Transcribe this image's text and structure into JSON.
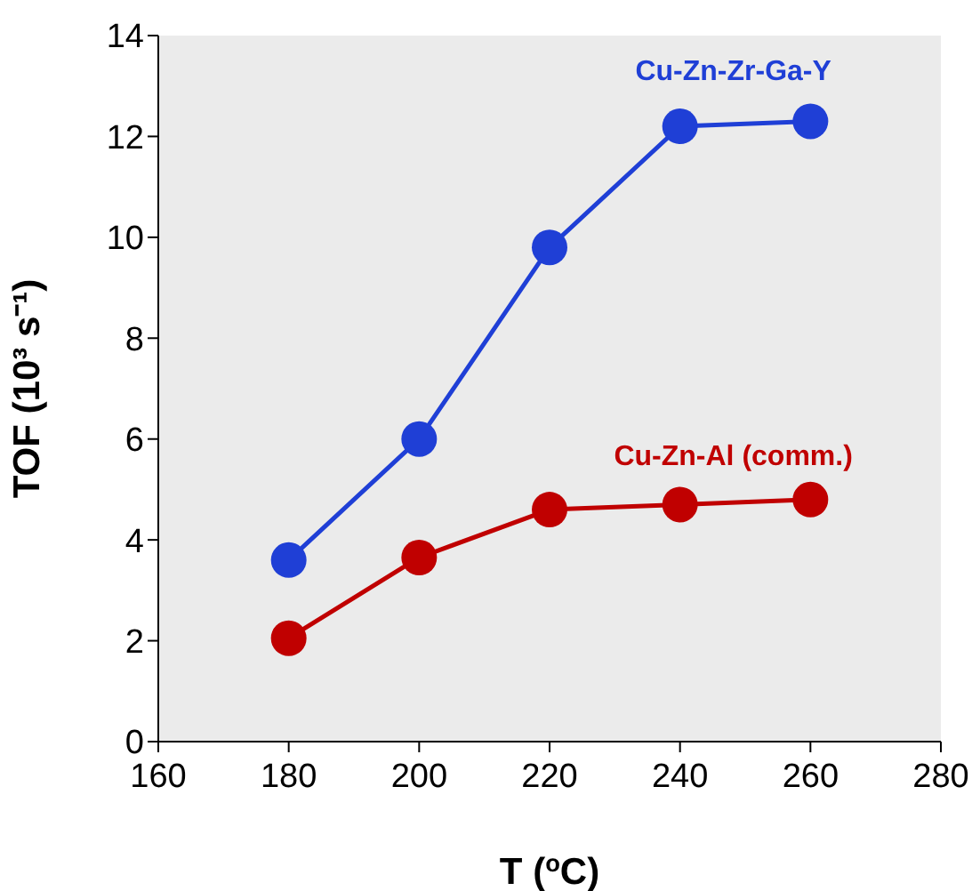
{
  "chart_data": {
    "type": "line",
    "xlabel": "T ($^{o}$C)",
    "ylabel": "TOF (10³ s⁻¹)",
    "x": [
      180,
      200,
      220,
      240,
      260
    ],
    "series": [
      {
        "name": "Cu-Zn-Zr-Ga-Y",
        "color": "#1f3fd6",
        "values": [
          3.6,
          6.0,
          9.8,
          12.2,
          12.3
        ]
      },
      {
        "name": "Cu-Zn-Al (comm.)",
        "color": "#c00000",
        "values": [
          2.05,
          3.65,
          4.6,
          4.7,
          4.8
        ]
      }
    ],
    "xlim": [
      160,
      280
    ],
    "xticks": [
      160,
      180,
      200,
      220,
      240,
      260,
      280
    ],
    "ylim": [
      0,
      14
    ],
    "yticks": [
      0,
      2,
      4,
      6,
      8,
      10,
      12,
      14
    ],
    "grid": false,
    "legend": false,
    "marker": "circle",
    "line_style": "solid"
  }
}
